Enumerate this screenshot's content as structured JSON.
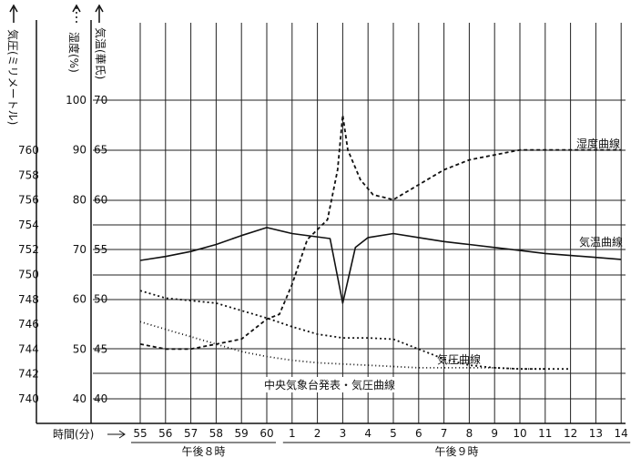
{
  "chart_data": {
    "type": "line",
    "title": "",
    "grid": true,
    "axes": {
      "pressure": {
        "label": "気圧(ミリメートル)",
        "ticks": [
          "760",
          "758",
          "756",
          "754",
          "752",
          "750",
          "748",
          "746",
          "744",
          "742",
          "740"
        ],
        "range": [
          738.5,
          767
        ]
      },
      "humidity": {
        "label": "湿度(%)",
        "ticks": [
          "100",
          "90",
          "80",
          "70",
          "60",
          "50",
          "40"
        ],
        "range": [
          37,
          105
        ]
      },
      "temperature": {
        "label": "気温(華氏)",
        "ticks": [
          "70",
          "65",
          "60",
          "55",
          "50",
          "45",
          "40"
        ],
        "range": [
          38.5,
          72.5
        ]
      }
    },
    "x": {
      "label": "時間(分)",
      "ticks": [
        "55",
        "56",
        "57",
        "58",
        "59",
        "60",
        "1",
        "2",
        "3",
        "4",
        "5",
        "6",
        "7",
        "8",
        "9",
        "10",
        "11",
        "12",
        "13",
        "14"
      ],
      "groups": [
        {
          "label": "午後８時",
          "from": "55",
          "to": "60"
        },
        {
          "label": "午後９時",
          "from": "1",
          "to": "14"
        }
      ]
    },
    "series": [
      {
        "name": "湿度曲線",
        "axis": "humidity",
        "dash": "dashed",
        "points": [
          [
            -5,
            51
          ],
          [
            -4,
            50
          ],
          [
            -3,
            50
          ],
          [
            -2,
            51
          ],
          [
            -1,
            52
          ],
          [
            0,
            56
          ],
          [
            0.5,
            57
          ],
          [
            1,
            63
          ],
          [
            1.6,
            72
          ],
          [
            2.4,
            76
          ],
          [
            2.8,
            86
          ],
          [
            3,
            97
          ],
          [
            3.2,
            90
          ],
          [
            3.7,
            84
          ],
          [
            4.2,
            81
          ],
          [
            5,
            80
          ],
          [
            6,
            83
          ],
          [
            7,
            86
          ],
          [
            8,
            88
          ],
          [
            9,
            89
          ],
          [
            10,
            90
          ],
          [
            11,
            90
          ],
          [
            12,
            90
          ],
          [
            13,
            90
          ],
          [
            14,
            90
          ]
        ]
      },
      {
        "name": "気温曲線",
        "axis": "temperature",
        "dash": "solid",
        "points": [
          [
            -5,
            53.9
          ],
          [
            -4,
            54.3
          ],
          [
            -3,
            54.8
          ],
          [
            -2,
            55.5
          ],
          [
            -1,
            56.4
          ],
          [
            0,
            57.2
          ],
          [
            1,
            56.6
          ],
          [
            2.5,
            56.1
          ],
          [
            3,
            49.6
          ],
          [
            3.5,
            55.2
          ],
          [
            4,
            56.2
          ],
          [
            5,
            56.6
          ],
          [
            6,
            56.2
          ],
          [
            7,
            55.8
          ],
          [
            8,
            55.5
          ],
          [
            9,
            55.2
          ],
          [
            10,
            54.9
          ],
          [
            11,
            54.6
          ],
          [
            12,
            54.4
          ],
          [
            13,
            54.2
          ],
          [
            14,
            54
          ]
        ]
      },
      {
        "name": "気圧曲線",
        "axis": "pressure",
        "dash": "dotted",
        "points": [
          [
            -5,
            748.7
          ],
          [
            -4,
            748.1
          ],
          [
            -3,
            747.9
          ],
          [
            -2,
            747.7
          ],
          [
            -1,
            747.1
          ],
          [
            0,
            746.5
          ],
          [
            1,
            745.8
          ],
          [
            2,
            745.2
          ],
          [
            3,
            744.9
          ],
          [
            4,
            744.9
          ],
          [
            5,
            744.8
          ],
          [
            6,
            744
          ],
          [
            7,
            743.2
          ],
          [
            8,
            742.7
          ],
          [
            9,
            742.5
          ],
          [
            10,
            742.4
          ],
          [
            11,
            742.4
          ],
          [
            12,
            742.4
          ]
        ]
      },
      {
        "name": "中央気象台発表・気圧曲線",
        "axis": "pressure",
        "dash": "fine-dotted",
        "points": [
          [
            -5,
            746.2
          ],
          [
            -4,
            745.6
          ],
          [
            -3,
            745
          ],
          [
            -2,
            744.4
          ],
          [
            -1,
            743.8
          ],
          [
            0,
            743.4
          ],
          [
            1,
            743.1
          ],
          [
            2,
            742.9
          ],
          [
            3,
            742.8
          ],
          [
            4,
            742.7
          ],
          [
            5,
            742.6
          ],
          [
            6,
            742.5
          ],
          [
            7,
            742.5
          ],
          [
            8,
            742.5
          ],
          [
            9,
            742.5
          ],
          [
            10,
            742.4
          ],
          [
            11,
            742.4
          ]
        ]
      }
    ]
  }
}
